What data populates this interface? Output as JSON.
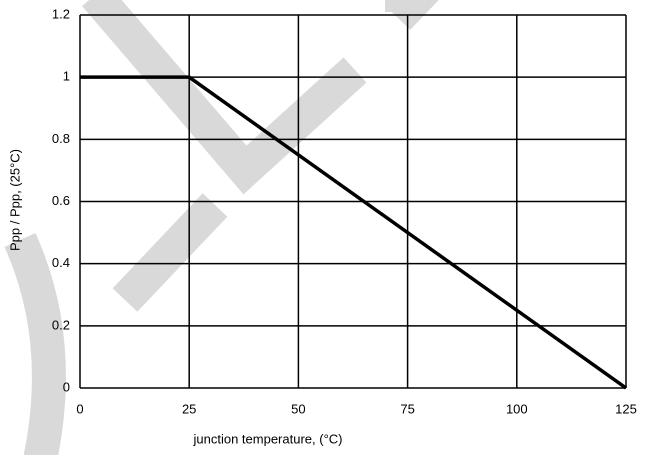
{
  "chart_data": {
    "type": "line",
    "x_label": "junction temperature, (°C)",
    "y_label": "Ppp / Ppp, (25°C)",
    "series": [
      {
        "color": "#000000",
        "x": [
          0,
          25,
          125
        ],
        "values": [
          1,
          1,
          0
        ]
      }
    ],
    "xlim": [
      0,
      125
    ],
    "xticks": [
      0,
      25,
      50,
      75,
      100,
      125
    ],
    "ylim": [
      0,
      1.2
    ],
    "yticks": [
      0,
      0.2,
      0.4,
      0.6,
      0.8,
      1,
      1.2
    ],
    "grid": true
  }
}
